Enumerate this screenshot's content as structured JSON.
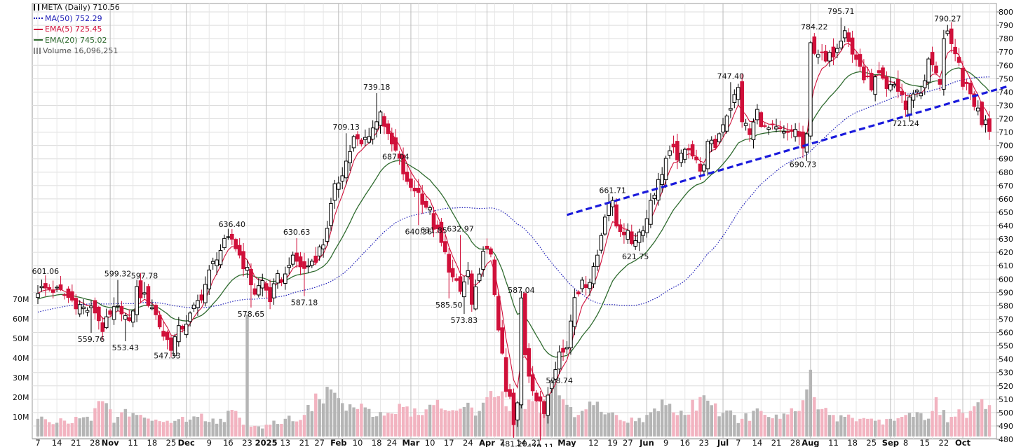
{
  "legend": {
    "ticker": "META (Daily) 710.56",
    "ma50": "MA(50) 752.29",
    "ema5": "EMA(5) 725.45",
    "ema20": "EMA(20) 745.02",
    "volume": "Volume 16,096,251"
  },
  "colors": {
    "up": "#000000",
    "down": "#d0103a",
    "vol_up": "#b5b5b5",
    "vol_down": "#f2b3c0",
    "ma50": "#1f1fb8",
    "ema5": "#d0103a",
    "ema20": "#2f6b2f",
    "trendline": "#1a1adc",
    "grid": "#dcdcdc"
  },
  "chart_data": {
    "type": "candlestick",
    "price_axis": {
      "min": 475,
      "max": 803,
      "ticks": [
        480,
        490,
        500,
        510,
        520,
        530,
        540,
        550,
        560,
        570,
        580,
        590,
        600,
        610,
        620,
        630,
        640,
        650,
        660,
        670,
        680,
        690,
        700,
        710,
        720,
        730,
        740,
        750,
        760,
        770,
        780,
        790,
        800
      ]
    },
    "volume_axis": {
      "max": 71,
      "ticks": [
        10,
        20,
        30,
        40,
        50,
        60,
        70
      ],
      "tick_labels": [
        "10M",
        "20M",
        "30M",
        "40M",
        "50M",
        "60M",
        "70M"
      ]
    },
    "date_labels": [
      {
        "label": "7",
        "day": 0
      },
      {
        "label": "14",
        "day": 5
      },
      {
        "label": "21",
        "day": 10
      },
      {
        "label": "28",
        "day": 15
      },
      {
        "label": "Nov",
        "day": 19,
        "bold": true
      },
      {
        "label": "11",
        "day": 25
      },
      {
        "label": "18",
        "day": 30
      },
      {
        "label": "25",
        "day": 35
      },
      {
        "label": "Dec",
        "day": 39,
        "bold": true
      },
      {
        "label": "9",
        "day": 45
      },
      {
        "label": "16",
        "day": 50
      },
      {
        "label": "23",
        "day": 55
      },
      {
        "label": "2025",
        "day": 60,
        "bold": true
      },
      {
        "label": "13",
        "day": 65
      },
      {
        "label": "21",
        "day": 70
      },
      {
        "label": "27",
        "day": 74
      },
      {
        "label": "Feb",
        "day": 79,
        "bold": true
      },
      {
        "label": "10",
        "day": 84
      },
      {
        "label": "18",
        "day": 89
      },
      {
        "label": "24",
        "day": 93
      },
      {
        "label": "Mar",
        "day": 98,
        "bold": true
      },
      {
        "label": "10",
        "day": 103
      },
      {
        "label": "17",
        "day": 108
      },
      {
        "label": "24",
        "day": 113
      },
      {
        "label": "Apr",
        "day": 118,
        "bold": true
      },
      {
        "label": "7",
        "day": 122
      },
      {
        "label": "14",
        "day": 127
      },
      {
        "label": "21",
        "day": 131
      },
      {
        "label": "May",
        "day": 139,
        "bold": true
      },
      {
        "label": "12",
        "day": 146
      },
      {
        "label": "19",
        "day": 151
      },
      {
        "label": "27",
        "day": 155
      },
      {
        "label": "Jun",
        "day": 160,
        "bold": true
      },
      {
        "label": "9",
        "day": 165
      },
      {
        "label": "16",
        "day": 170
      },
      {
        "label": "23",
        "day": 175
      },
      {
        "label": "Jul",
        "day": 180,
        "bold": true
      },
      {
        "label": "7",
        "day": 184
      },
      {
        "label": "14",
        "day": 189
      },
      {
        "label": "21",
        "day": 194
      },
      {
        "label": "28",
        "day": 199
      },
      {
        "label": "Aug",
        "day": 203,
        "bold": true
      },
      {
        "label": "11",
        "day": 209
      },
      {
        "label": "18",
        "day": 214
      },
      {
        "label": "25",
        "day": 219
      },
      {
        "label": "Sep",
        "day": 224,
        "bold": true
      },
      {
        "label": "8",
        "day": 228
      },
      {
        "label": "15",
        "day": 233
      },
      {
        "label": "22",
        "day": 238
      },
      {
        "label": "Oct",
        "day": 243,
        "bold": true
      }
    ],
    "close_anchors": [
      [
        0,
        592
      ],
      [
        3,
        593
      ],
      [
        6,
        590
      ],
      [
        9,
        584
      ],
      [
        12,
        578
      ],
      [
        15,
        576
      ],
      [
        17,
        563
      ],
      [
        20,
        576
      ],
      [
        22,
        578
      ],
      [
        24,
        565
      ],
      [
        26,
        592
      ],
      [
        28,
        586
      ],
      [
        30,
        580
      ],
      [
        33,
        558
      ],
      [
        35,
        550
      ],
      [
        37,
        561
      ],
      [
        40,
        572
      ],
      [
        43,
        588
      ],
      [
        45,
        604
      ],
      [
        47,
        618
      ],
      [
        49,
        626
      ],
      [
        51,
        630
      ],
      [
        53,
        618
      ],
      [
        55,
        605
      ],
      [
        57,
        590
      ],
      [
        59,
        598
      ],
      [
        61,
        585
      ],
      [
        63,
        600
      ],
      [
        65,
        602
      ],
      [
        66,
        614
      ],
      [
        68,
        613
      ],
      [
        70,
        607
      ],
      [
        73,
        617
      ],
      [
        75,
        627
      ],
      [
        78,
        667
      ],
      [
        81,
        688
      ],
      [
        83,
        705
      ],
      [
        85,
        700
      ],
      [
        87,
        710
      ],
      [
        89,
        717
      ],
      [
        90,
        728
      ],
      [
        92,
        705
      ],
      [
        94,
        695
      ],
      [
        96,
        680
      ],
      [
        97,
        670
      ],
      [
        99,
        668
      ],
      [
        101,
        660
      ],
      [
        103,
        650
      ],
      [
        104,
        640
      ],
      [
        105,
        634
      ],
      [
        107,
        618
      ],
      [
        109,
        600
      ],
      [
        111,
        590
      ],
      [
        113,
        605
      ],
      [
        114,
        580
      ],
      [
        116,
        600
      ],
      [
        117,
        625
      ],
      [
        119,
        615
      ],
      [
        120,
        590
      ],
      [
        122,
        540
      ],
      [
        123,
        515
      ],
      [
        124,
        510
      ],
      [
        125,
        490
      ],
      [
        126,
        505
      ],
      [
        127,
        585
      ],
      [
        128,
        545
      ],
      [
        129,
        530
      ],
      [
        130,
        520
      ],
      [
        131,
        510
      ],
      [
        132,
        505
      ],
      [
        133,
        500
      ],
      [
        134,
        515
      ],
      [
        135,
        528
      ],
      [
        137,
        545
      ],
      [
        138,
        545
      ],
      [
        139,
        550
      ],
      [
        140,
        570
      ],
      [
        141,
        590
      ],
      [
        143,
        595
      ],
      [
        145,
        600
      ],
      [
        147,
        618
      ],
      [
        149,
        650
      ],
      [
        150,
        658
      ],
      [
        151,
        655
      ],
      [
        152,
        640
      ],
      [
        154,
        636
      ],
      [
        156,
        628
      ],
      [
        158,
        635
      ],
      [
        160,
        645
      ],
      [
        161,
        660
      ],
      [
        163,
        672
      ],
      [
        165,
        690
      ],
      [
        167,
        695
      ],
      [
        169,
        690
      ],
      [
        171,
        700
      ],
      [
        173,
        690
      ],
      [
        174,
        678
      ],
      [
        176,
        700
      ],
      [
        178,
        700
      ],
      [
        180,
        718
      ],
      [
        182,
        730
      ],
      [
        184,
        742
      ],
      [
        185,
        720
      ],
      [
        187,
        708
      ],
      [
        189,
        725
      ],
      [
        191,
        712
      ],
      [
        193,
        712
      ],
      [
        195,
        710
      ],
      [
        197,
        707
      ],
      [
        199,
        713
      ],
      [
        201,
        698
      ],
      [
        202,
        705
      ],
      [
        203,
        775
      ],
      [
        205,
        770
      ],
      [
        207,
        762
      ],
      [
        209,
        770
      ],
      [
        211,
        782
      ],
      [
        212,
        790
      ],
      [
        213,
        780
      ],
      [
        214,
        768
      ],
      [
        216,
        760
      ],
      [
        217,
        750
      ],
      [
        219,
        745
      ],
      [
        221,
        752
      ],
      [
        223,
        740
      ],
      [
        225,
        745
      ],
      [
        227,
        738
      ],
      [
        228,
        727
      ],
      [
        230,
        741
      ],
      [
        232,
        740
      ],
      [
        234,
        762
      ],
      [
        235,
        760
      ],
      [
        236,
        752
      ],
      [
        237,
        748
      ],
      [
        238,
        782
      ],
      [
        239,
        785
      ],
      [
        240,
        772
      ],
      [
        241,
        765
      ],
      [
        242,
        760
      ],
      [
        243,
        748
      ],
      [
        244,
        742
      ],
      [
        245,
        738
      ],
      [
        246,
        732
      ],
      [
        247,
        726
      ],
      [
        248,
        718
      ],
      [
        249,
        722
      ],
      [
        250,
        710.56
      ]
    ],
    "volume_anchors": [
      [
        0,
        9
      ],
      [
        5,
        7
      ],
      [
        10,
        10
      ],
      [
        14,
        8
      ],
      [
        17,
        18
      ],
      [
        18,
        17
      ],
      [
        20,
        7
      ],
      [
        23,
        14
      ],
      [
        26,
        11
      ],
      [
        30,
        8
      ],
      [
        34,
        8
      ],
      [
        38,
        10
      ],
      [
        42,
        10
      ],
      [
        48,
        9
      ],
      [
        52,
        13
      ],
      [
        54,
        6
      ],
      [
        55,
        62
      ],
      [
        56,
        5
      ],
      [
        60,
        6
      ],
      [
        65,
        9
      ],
      [
        70,
        11
      ],
      [
        74,
        19
      ],
      [
        77,
        24
      ],
      [
        80,
        17
      ],
      [
        84,
        14
      ],
      [
        88,
        10
      ],
      [
        92,
        12
      ],
      [
        96,
        15
      ],
      [
        100,
        11
      ],
      [
        104,
        16
      ],
      [
        108,
        13
      ],
      [
        112,
        15
      ],
      [
        116,
        13
      ],
      [
        120,
        20
      ],
      [
        122,
        23
      ],
      [
        124,
        13
      ],
      [
        126,
        17
      ],
      [
        128,
        14
      ],
      [
        130,
        18
      ],
      [
        132,
        12
      ],
      [
        134,
        16
      ],
      [
        136,
        27
      ],
      [
        138,
        19
      ],
      [
        140,
        15
      ],
      [
        142,
        11
      ],
      [
        146,
        16
      ],
      [
        150,
        12
      ],
      [
        155,
        7
      ],
      [
        160,
        11
      ],
      [
        165,
        16
      ],
      [
        170,
        11
      ],
      [
        175,
        21
      ],
      [
        180,
        12
      ],
      [
        185,
        9
      ],
      [
        190,
        13
      ],
      [
        195,
        9
      ],
      [
        200,
        13
      ],
      [
        202,
        24
      ],
      [
        203,
        34
      ],
      [
        204,
        20
      ],
      [
        206,
        14
      ],
      [
        208,
        11
      ],
      [
        212,
        10
      ],
      [
        216,
        9
      ],
      [
        220,
        8
      ],
      [
        225,
        8
      ],
      [
        230,
        10
      ],
      [
        235,
        13
      ],
      [
        236,
        20
      ],
      [
        237,
        11
      ],
      [
        240,
        10
      ],
      [
        243,
        12
      ],
      [
        245,
        13
      ],
      [
        248,
        19
      ],
      [
        249,
        14
      ],
      [
        250,
        16
      ]
    ],
    "highs": [
      {
        "label": "601.06",
        "day": 2,
        "price": 601.06
      },
      {
        "label": "599.32",
        "day": 21,
        "price": 599.32
      },
      {
        "label": "597.78",
        "day": 28,
        "price": 597.78
      },
      {
        "label": "636.40",
        "day": 51,
        "price": 636.4
      },
      {
        "label": "630.63",
        "day": 68,
        "price": 630.63
      },
      {
        "label": "709.13",
        "day": 81,
        "price": 709.13
      },
      {
        "label": "739.18",
        "day": 89,
        "price": 739.18
      },
      {
        "label": "687.04",
        "day": 94,
        "price": 687.04
      },
      {
        "label": "631.85",
        "day": 104,
        "price": 631.85
      },
      {
        "label": "632.97",
        "day": 111,
        "price": 632.97
      },
      {
        "label": "587.04",
        "day": 127,
        "price": 587.04
      },
      {
        "label": "661.71",
        "day": 151,
        "price": 661.71
      },
      {
        "label": "747.40",
        "day": 182,
        "price": 747.4
      },
      {
        "label": "784.22",
        "day": 204,
        "price": 784.22
      },
      {
        "label": "795.71",
        "day": 211,
        "price": 795.71
      },
      {
        "label": "790.27",
        "day": 239,
        "price": 790.27
      }
    ],
    "lows": [
      {
        "label": "559.76",
        "day": 14,
        "price": 559.76
      },
      {
        "label": "553.43",
        "day": 23,
        "price": 553.43
      },
      {
        "label": "547.33",
        "day": 34,
        "price": 547.33
      },
      {
        "label": "578.65",
        "day": 56,
        "price": 578.65
      },
      {
        "label": "587.18",
        "day": 70,
        "price": 587.18
      },
      {
        "label": "640.36",
        "day": 100,
        "price": 640.36
      },
      {
        "label": "585.50",
        "day": 108,
        "price": 585.5
      },
      {
        "label": "573.83",
        "day": 112,
        "price": 573.83
      },
      {
        "label": "481.20",
        "day": 125,
        "price": 481.2
      },
      {
        "label": "479.11",
        "day": 132,
        "price": 479.11
      },
      {
        "label": "528.74",
        "day": 137,
        "price": 528.74
      },
      {
        "label": "621.75",
        "day": 157,
        "price": 621.75
      },
      {
        "label": "690.73",
        "day": 201,
        "price": 690.73
      },
      {
        "label": "721.24",
        "day": 228,
        "price": 721.24
      }
    ],
    "trendlines": [
      {
        "from": [
          139,
          648
        ],
        "to": [
          253,
          743
        ]
      }
    ],
    "series": [
      {
        "name": "MA(50)"
      },
      {
        "name": "EMA(5)"
      },
      {
        "name": "EMA(20)"
      }
    ]
  }
}
